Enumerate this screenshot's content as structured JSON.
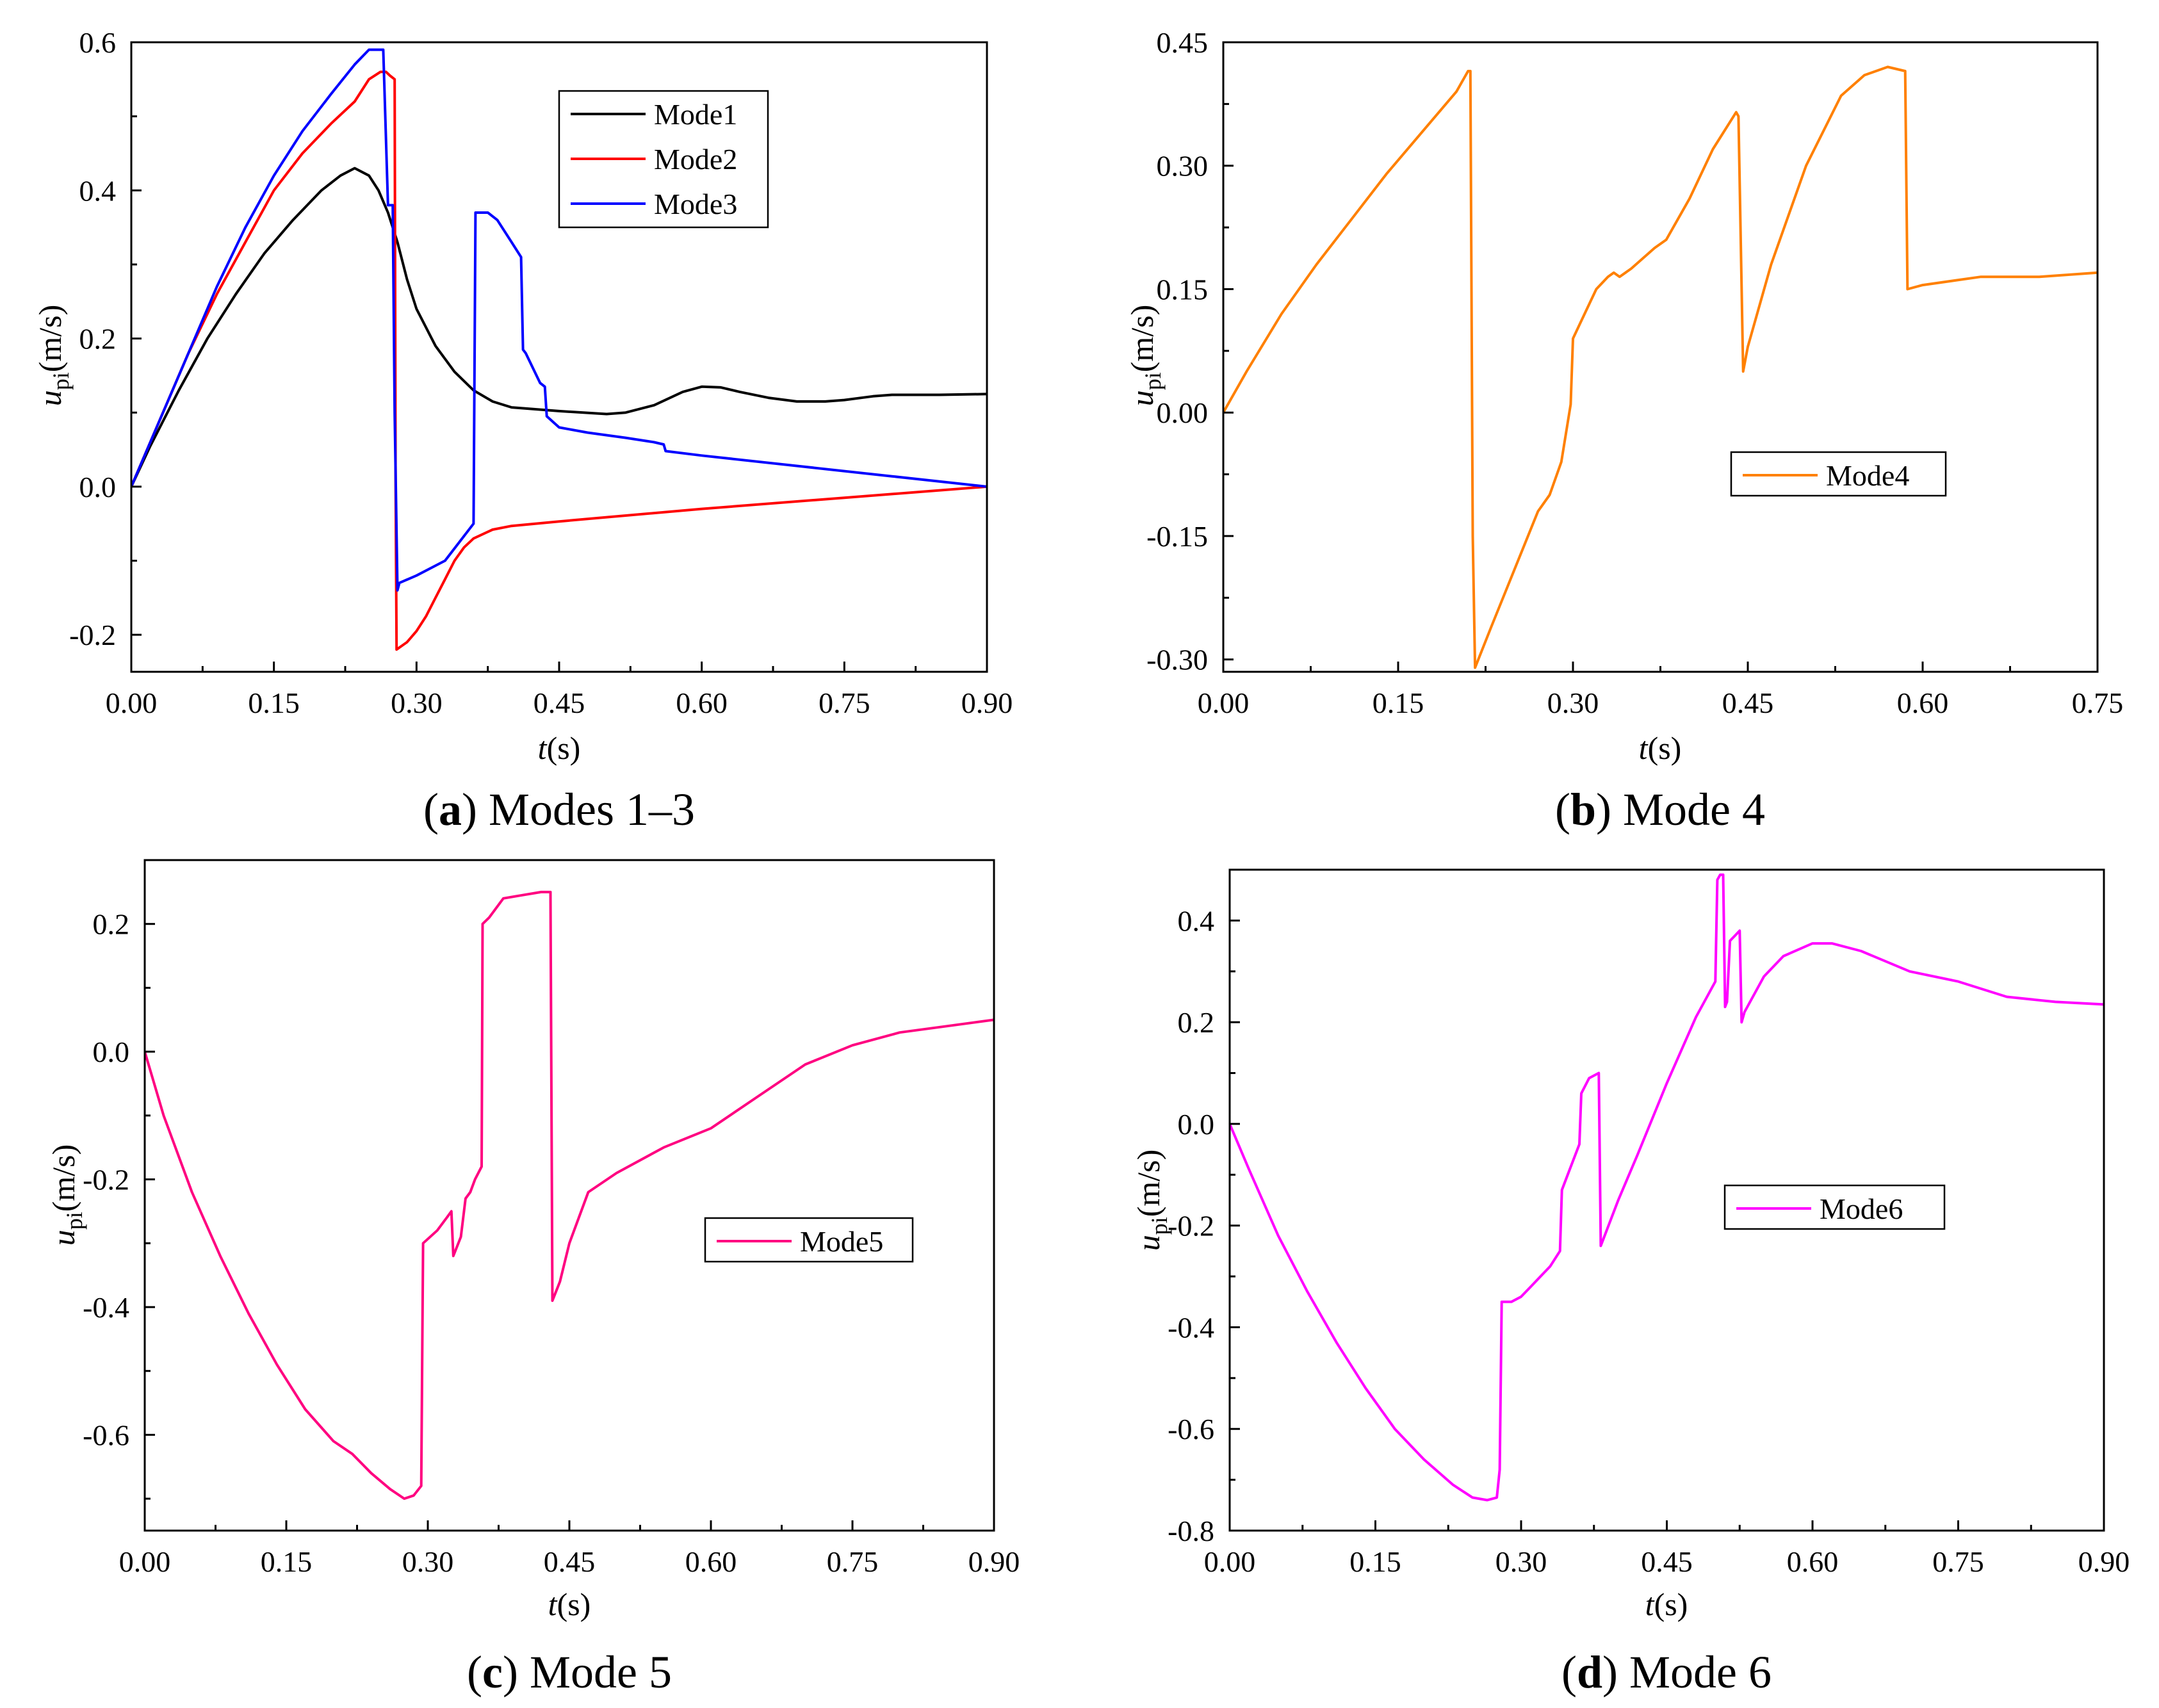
{
  "figure": {
    "panels": [
      {
        "id": "a",
        "caption_letter": "a",
        "caption_text": " Modes 1–3",
        "xlabel_italic": "t",
        "xlabel_rest": "(s)",
        "ylabel_italic": "u",
        "ylabel_sub": "pi",
        "ylabel_rest": "(m/s)"
      },
      {
        "id": "b",
        "caption_letter": "b",
        "caption_text": " Mode 4",
        "xlabel_italic": "t",
        "xlabel_rest": "(s)",
        "ylabel_italic": "u",
        "ylabel_sub": "pi",
        "ylabel_rest": "(m/s)"
      },
      {
        "id": "c",
        "caption_letter": "c",
        "caption_text": " Mode 5",
        "xlabel_italic": "t",
        "xlabel_rest": "(s)",
        "ylabel_italic": "u",
        "ylabel_sub": "pi",
        "ylabel_rest": "(m/s)"
      },
      {
        "id": "d",
        "caption_letter": "d",
        "caption_text": " Mode 6",
        "xlabel_italic": "t",
        "xlabel_rest": "(s)",
        "ylabel_italic": "u",
        "ylabel_sub": "pi",
        "ylabel_rest": "(m/s)"
      }
    ]
  },
  "chart_data": [
    {
      "type": "line",
      "panel": "a",
      "title": "(a) Modes 1–3",
      "xlabel": "t(s)",
      "ylabel": "upi(m/s)",
      "xlim": [
        0,
        0.9
      ],
      "ylim": [
        -0.25,
        0.6
      ],
      "xticks": [
        "0.00",
        "0.15",
        "0.30",
        "0.45",
        "0.60",
        "0.75",
        "0.90"
      ],
      "xtick_values": [
        0,
        0.15,
        0.3,
        0.45,
        0.6,
        0.75,
        0.9
      ],
      "yticks": [
        "-0.2",
        "0.0",
        "0.2",
        "0.4",
        "0.6"
      ],
      "ytick_values": [
        -0.2,
        0,
        0.2,
        0.4,
        0.6
      ],
      "legend_position": "top-center",
      "series": [
        {
          "name": "Mode1",
          "color": "#000000",
          "x": [
            0,
            0.02,
            0.05,
            0.08,
            0.11,
            0.14,
            0.17,
            0.2,
            0.22,
            0.235,
            0.25,
            0.26,
            0.27,
            0.28,
            0.29,
            0.3,
            0.32,
            0.34,
            0.36,
            0.38,
            0.4,
            0.45,
            0.5,
            0.52,
            0.55,
            0.58,
            0.6,
            0.62,
            0.64,
            0.67,
            0.7,
            0.73,
            0.75,
            0.78,
            0.8,
            0.85,
            0.9
          ],
          "y": [
            0,
            0.055,
            0.13,
            0.2,
            0.26,
            0.315,
            0.36,
            0.4,
            0.42,
            0.43,
            0.42,
            0.4,
            0.37,
            0.33,
            0.28,
            0.24,
            0.19,
            0.155,
            0.13,
            0.115,
            0.107,
            0.102,
            0.098,
            0.1,
            0.11,
            0.128,
            0.135,
            0.134,
            0.128,
            0.12,
            0.115,
            0.115,
            0.117,
            0.122,
            0.124,
            0.124,
            0.125
          ]
        },
        {
          "name": "Mode2",
          "color": "#ff0000",
          "x": [
            0,
            0.03,
            0.06,
            0.09,
            0.12,
            0.15,
            0.18,
            0.21,
            0.235,
            0.25,
            0.262,
            0.268,
            0.272,
            0.277,
            0.278,
            0.279,
            0.29,
            0.3,
            0.31,
            0.32,
            0.33,
            0.34,
            0.35,
            0.36,
            0.38,
            0.4,
            0.45,
            0.6,
            0.75,
            0.9
          ],
          "y": [
            0,
            0.09,
            0.18,
            0.26,
            0.33,
            0.4,
            0.45,
            0.49,
            0.52,
            0.55,
            0.56,
            0.56,
            0.555,
            0.55,
            0.0,
            -0.22,
            -0.21,
            -0.195,
            -0.175,
            -0.15,
            -0.125,
            -0.1,
            -0.082,
            -0.07,
            -0.058,
            -0.053,
            -0.047,
            -0.03,
            -0.015,
            0
          ]
        },
        {
          "name": "Mode3",
          "color": "#0000ff",
          "x": [
            0,
            0.03,
            0.06,
            0.09,
            0.12,
            0.15,
            0.18,
            0.21,
            0.235,
            0.25,
            0.265,
            0.27,
            0.275,
            0.277,
            0.28,
            0.282,
            0.3,
            0.33,
            0.36,
            0.362,
            0.365,
            0.375,
            0.385,
            0.39,
            0.395,
            0.4,
            0.41,
            0.412,
            0.415,
            0.43,
            0.435,
            0.437,
            0.45,
            0.48,
            0.52,
            0.55,
            0.56,
            0.562,
            0.6,
            0.7,
            0.8,
            0.9
          ],
          "y": [
            0,
            0.09,
            0.18,
            0.27,
            0.35,
            0.42,
            0.48,
            0.53,
            0.57,
            0.59,
            0.59,
            0.38,
            0.38,
            0.1,
            -0.14,
            -0.13,
            -0.12,
            -0.1,
            -0.05,
            0.37,
            0.37,
            0.37,
            0.36,
            0.35,
            0.34,
            0.33,
            0.31,
            0.185,
            0.18,
            0.14,
            0.135,
            0.095,
            0.08,
            0.073,
            0.066,
            0.06,
            0.057,
            0.048,
            0.042,
            0.028,
            0.014,
            0
          ]
        }
      ]
    },
    {
      "type": "line",
      "panel": "b",
      "title": "(b) Mode 4",
      "xlabel": "t(s)",
      "ylabel": "upi(m/s)",
      "xlim": [
        0,
        0.75
      ],
      "ylim": [
        -0.315,
        0.45
      ],
      "xticks": [
        "0.00",
        "0.15",
        "0.30",
        "0.45",
        "0.60",
        "0.75"
      ],
      "xtick_values": [
        0,
        0.15,
        0.3,
        0.45,
        0.6,
        0.75
      ],
      "yticks": [
        "-0.30",
        "-0.15",
        "0.00",
        "0.15",
        "0.30",
        "0.45"
      ],
      "ytick_values": [
        -0.3,
        -0.15,
        0,
        0.15,
        0.3,
        0.45
      ],
      "legend_position": "center-right",
      "series": [
        {
          "name": "Mode4",
          "color": "#ff8000",
          "x": [
            0,
            0.02,
            0.05,
            0.08,
            0.11,
            0.14,
            0.17,
            0.2,
            0.21,
            0.212,
            0.214,
            0.216,
            0.23,
            0.25,
            0.27,
            0.28,
            0.29,
            0.298,
            0.3,
            0.31,
            0.32,
            0.33,
            0.335,
            0.34,
            0.35,
            0.37,
            0.38,
            0.4,
            0.42,
            0.44,
            0.442,
            0.446,
            0.45,
            0.47,
            0.5,
            0.53,
            0.55,
            0.57,
            0.585,
            0.587,
            0.6,
            0.65,
            0.7,
            0.75
          ],
          "y": [
            0,
            0.05,
            0.12,
            0.18,
            0.235,
            0.29,
            0.34,
            0.39,
            0.415,
            0.415,
            -0.15,
            -0.31,
            -0.26,
            -0.19,
            -0.12,
            -0.1,
            -0.06,
            0.01,
            0.09,
            0.12,
            0.15,
            0.165,
            0.17,
            0.165,
            0.175,
            0.2,
            0.21,
            0.26,
            0.32,
            0.365,
            0.36,
            0.05,
            0.08,
            0.18,
            0.3,
            0.385,
            0.41,
            0.42,
            0.415,
            0.15,
            0.155,
            0.165,
            0.165,
            0.17
          ]
        }
      ]
    },
    {
      "type": "line",
      "panel": "c",
      "title": "(c) Mode 5",
      "xlabel": "t(s)",
      "ylabel": "upi(m/s)",
      "xlim": [
        0,
        0.9
      ],
      "ylim": [
        -0.75,
        0.3
      ],
      "xticks": [
        "0.00",
        "0.15",
        "0.30",
        "0.45",
        "0.60",
        "0.75",
        "0.90"
      ],
      "xtick_values": [
        0,
        0.15,
        0.3,
        0.45,
        0.6,
        0.75,
        0.9
      ],
      "yticks": [
        "-0.6",
        "-0.4",
        "-0.2",
        "0.0",
        "0.2"
      ],
      "ytick_values": [
        -0.6,
        -0.4,
        -0.2,
        0,
        0.2
      ],
      "legend_position": "center-right",
      "series": [
        {
          "name": "Mode5",
          "color": "#ff0080",
          "x": [
            0,
            0.02,
            0.05,
            0.08,
            0.11,
            0.14,
            0.17,
            0.2,
            0.22,
            0.24,
            0.26,
            0.275,
            0.285,
            0.293,
            0.295,
            0.31,
            0.32,
            0.325,
            0.327,
            0.335,
            0.34,
            0.345,
            0.35,
            0.357,
            0.358,
            0.365,
            0.38,
            0.4,
            0.42,
            0.43,
            0.432,
            0.44,
            0.45,
            0.47,
            0.5,
            0.55,
            0.6,
            0.65,
            0.7,
            0.75,
            0.8,
            0.85,
            0.9
          ],
          "y": [
            0,
            -0.1,
            -0.22,
            -0.32,
            -0.41,
            -0.49,
            -0.56,
            -0.61,
            -0.63,
            -0.66,
            -0.685,
            -0.7,
            -0.695,
            -0.68,
            -0.3,
            -0.28,
            -0.26,
            -0.25,
            -0.32,
            -0.29,
            -0.23,
            -0.22,
            -0.2,
            -0.18,
            0.2,
            0.21,
            0.24,
            0.245,
            0.25,
            0.25,
            -0.39,
            -0.36,
            -0.3,
            -0.22,
            -0.19,
            -0.15,
            -0.12,
            -0.07,
            -0.02,
            0.01,
            0.03,
            0.04,
            0.05
          ]
        }
      ]
    },
    {
      "type": "line",
      "panel": "d",
      "title": "(d) Mode 6",
      "xlabel": "t(s)",
      "ylabel": "upi(m/s)",
      "xlim": [
        0,
        0.9
      ],
      "ylim": [
        -0.8,
        0.5
      ],
      "xticks": [
        "0.00",
        "0.15",
        "0.30",
        "0.45",
        "0.60",
        "0.75",
        "0.90"
      ],
      "xtick_values": [
        0,
        0.15,
        0.3,
        0.45,
        0.6,
        0.75,
        0.9
      ],
      "yticks": [
        "-0.8",
        "-0.6",
        "-0.4",
        "-0.2",
        "0.0",
        "0.2",
        "0.4"
      ],
      "ytick_values": [
        -0.8,
        -0.6,
        -0.4,
        -0.2,
        0,
        0.2,
        0.4
      ],
      "legend_position": "center-right",
      "series": [
        {
          "name": "Mode6",
          "color": "#ff00ff",
          "x": [
            0,
            0.02,
            0.05,
            0.08,
            0.11,
            0.14,
            0.17,
            0.2,
            0.23,
            0.25,
            0.265,
            0.275,
            0.278,
            0.28,
            0.29,
            0.3,
            0.31,
            0.32,
            0.33,
            0.34,
            0.342,
            0.35,
            0.36,
            0.362,
            0.37,
            0.38,
            0.382,
            0.39,
            0.4,
            0.42,
            0.45,
            0.48,
            0.5,
            0.502,
            0.505,
            0.508,
            0.51,
            0.512,
            0.515,
            0.52,
            0.525,
            0.527,
            0.53,
            0.55,
            0.57,
            0.6,
            0.62,
            0.65,
            0.7,
            0.75,
            0.8,
            0.85,
            0.9
          ],
          "y": [
            0,
            -0.09,
            -0.22,
            -0.33,
            -0.43,
            -0.52,
            -0.6,
            -0.66,
            -0.71,
            -0.735,
            -0.74,
            -0.735,
            -0.68,
            -0.35,
            -0.35,
            -0.34,
            -0.32,
            -0.3,
            -0.28,
            -0.25,
            -0.13,
            -0.09,
            -0.04,
            0.06,
            0.09,
            0.1,
            -0.24,
            -0.2,
            -0.15,
            -0.06,
            0.08,
            0.21,
            0.28,
            0.48,
            0.49,
            0.49,
            0.23,
            0.24,
            0.36,
            0.37,
            0.38,
            0.2,
            0.22,
            0.29,
            0.33,
            0.355,
            0.355,
            0.34,
            0.3,
            0.28,
            0.25,
            0.24,
            0.235
          ]
        }
      ]
    }
  ]
}
